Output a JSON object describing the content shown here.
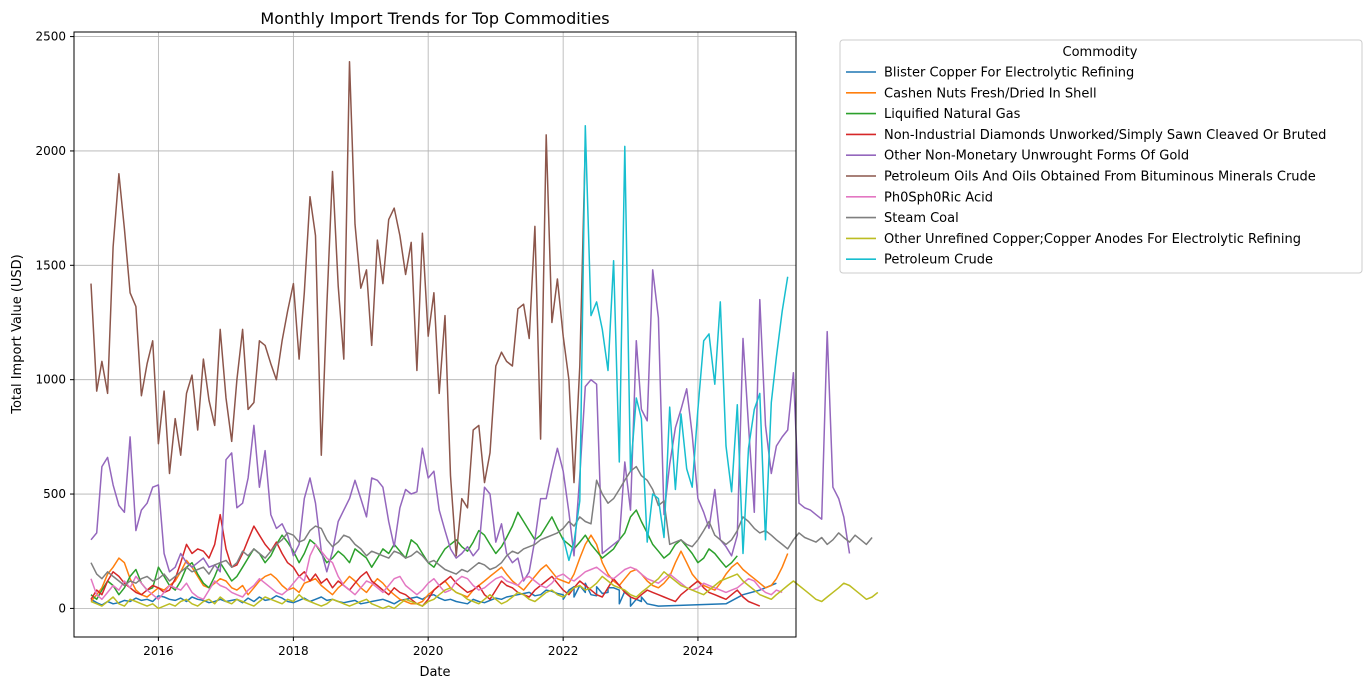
{
  "chart_data": {
    "type": "line",
    "title": "Monthly Import Trends for Top Commodities",
    "xlabel": "Date",
    "ylabel": "Total Import Value (USD)",
    "xlim": [
      "2014-10-01",
      "2025-06-15"
    ],
    "ylim": [
      -125,
      2520
    ],
    "x_ticks": [
      "2016",
      "2018",
      "2020",
      "2022",
      "2024"
    ],
    "x_tick_dates": [
      "2016-01-01",
      "2018-01-01",
      "2020-01-01",
      "2022-01-01",
      "2024-01-01"
    ],
    "y_ticks": [
      0,
      500,
      1000,
      1500,
      2000,
      2500
    ],
    "grid": true,
    "legend": {
      "title": "Commodity",
      "placement": "outside-upper-right"
    },
    "series": [
      {
        "name": "Blister Copper For Electrolytic Refining",
        "color": "#1f77b4",
        "start": "2015-01-01",
        "values": [
          40,
          25,
          15,
          30,
          20,
          25,
          35,
          30,
          45,
          35,
          40,
          30,
          55,
          50,
          40,
          35,
          45,
          30,
          50,
          40,
          35,
          25,
          30,
          40,
          30,
          35,
          40,
          25,
          45,
          30,
          50,
          35,
          40,
          55,
          45,
          30,
          25,
          35,
          45,
          30,
          40,
          50,
          35,
          40,
          30,
          25,
          30,
          35,
          20,
          25,
          30,
          35,
          40,
          30,
          20,
          35,
          40,
          45,
          50,
          40,
          55,
          60,
          45,
          35,
          40,
          30,
          25,
          20,
          40,
          30,
          25,
          35,
          45,
          40,
          50,
          55,
          60,
          65,
          70,
          55,
          60,
          80,
          75,
          65,
          60,
          80,
          95,
          100,
          70,
          60,
          55,
          65,
          70,
          90,
          80,
          75,
          50,
          40,
          30,
          20
        ],
        "extra": [
          [
            "2022-01-01",
            40
          ],
          [
            "2022-03-01",
            50
          ],
          [
            "2022-05-01",
            110
          ],
          [
            "2022-07-01",
            95
          ],
          [
            "2022-09-01",
            90
          ],
          [
            "2022-11-01",
            20
          ],
          [
            "2023-01-01",
            10
          ],
          [
            "2023-03-01",
            50
          ],
          [
            "2023-06-01",
            10
          ],
          [
            "2024-06-01",
            20
          ],
          [
            "2024-09-01",
            60
          ],
          [
            "2024-12-01",
            80
          ],
          [
            "2025-03-01",
            110
          ]
        ]
      },
      {
        "name": "Cashen Nuts Fresh/Dried In Shell",
        "color": "#ff7f0e",
        "start": "2015-01-01",
        "values": [
          30,
          60,
          90,
          150,
          180,
          220,
          200,
          130,
          80,
          60,
          50,
          70,
          90,
          80,
          100,
          120,
          160,
          210,
          180,
          140,
          100,
          90,
          110,
          130,
          120,
          90,
          80,
          100,
          60,
          90,
          120,
          140,
          150,
          130,
          100,
          80,
          90,
          70,
          110,
          120,
          130,
          100,
          80,
          60,
          90,
          110,
          140,
          120,
          90,
          70,
          100,
          130,
          110,
          80,
          60,
          40,
          30,
          20,
          20,
          30,
          60,
          80,
          100,
          120,
          90,
          70,
          60,
          50,
          80,
          100,
          120,
          140,
          160,
          180,
          150,
          120,
          100,
          80,
          110,
          140,
          170,
          190,
          160,
          130,
          120,
          110,
          150,
          220,
          280,
          320,
          280,
          200,
          150,
          120,
          100,
          130,
          160,
          170,
          150,
          120,
          100,
          90,
          110,
          140,
          200,
          250,
          200,
          150,
          120,
          100,
          90,
          80,
          110,
          150,
          180,
          200,
          170,
          150,
          130,
          110,
          90,
          100,
          130,
          180,
          240
        ]
      },
      {
        "name": "Liquified Natural Gas",
        "color": "#2ca02c",
        "start": "2015-01-01",
        "values": [
          60,
          40,
          80,
          120,
          100,
          60,
          90,
          140,
          170,
          110,
          80,
          90,
          180,
          140,
          100,
          80,
          120,
          180,
          200,
          150,
          110,
          90,
          140,
          200,
          160,
          120,
          140,
          180,
          220,
          260,
          240,
          200,
          230,
          280,
          320,
          290,
          250,
          200,
          240,
          300,
          280,
          240,
          200,
          220,
          250,
          230,
          200,
          260,
          240,
          220,
          180,
          220,
          260,
          240,
          280,
          250,
          220,
          300,
          280,
          240,
          200,
          180,
          220,
          260,
          280,
          300,
          270,
          250,
          290,
          340,
          320,
          280,
          240,
          270,
          310,
          360,
          420,
          380,
          340,
          300,
          320,
          360,
          400,
          350,
          300,
          280,
          260,
          290,
          320,
          280,
          250,
          220,
          240,
          260,
          300,
          330,
          400,
          430,
          380,
          330,
          280,
          250,
          220,
          240,
          280,
          300,
          270,
          240,
          200,
          220,
          260,
          240,
          210,
          180,
          200,
          230
        ]
      },
      {
        "name": "Non-Industrial Diamonds Unworked/Simply Sawn Cleaved Or Bruted",
        "color": "#d62728",
        "start": "2015-01-01",
        "values": [
          40,
          80,
          60,
          120,
          160,
          140,
          110,
          90,
          70,
          60,
          80,
          100,
          90,
          70,
          80,
          130,
          200,
          280,
          240,
          260,
          250,
          220,
          280,
          410,
          260,
          180,
          190,
          240,
          300,
          360,
          320,
          280,
          250,
          290,
          240,
          200,
          180,
          140,
          160,
          120,
          150,
          110,
          130,
          90,
          120,
          100,
          80,
          110,
          140,
          160,
          120,
          100,
          80,
          60,
          90,
          70,
          60,
          40,
          20,
          10,
          40,
          80,
          100,
          120,
          140,
          110,
          90,
          70,
          80,
          100,
          60,
          40,
          80,
          120,
          100,
          90,
          70,
          60,
          50,
          80,
          100,
          120,
          140,
          110,
          80,
          60,
          90,
          120,
          100,
          80,
          60,
          50,
          90,
          130,
          100,
          70,
          50,
          40,
          60,
          80,
          70,
          60,
          50,
          40,
          30,
          60,
          80,
          100,
          120,
          90,
          70,
          60,
          50,
          40,
          60,
          80,
          50,
          30,
          20,
          10
        ]
      },
      {
        "name": "Other Non-Monetary Unwrought Forms Of Gold",
        "color": "#9467bd",
        "start": "2015-01-01",
        "values": [
          300,
          330,
          620,
          660,
          540,
          450,
          420,
          750,
          340,
          430,
          460,
          530,
          540,
          240,
          160,
          180,
          240,
          200,
          180,
          200,
          220,
          180,
          190,
          160,
          650,
          680,
          440,
          460,
          570,
          800,
          530,
          690,
          410,
          350,
          370,
          320,
          230,
          280,
          480,
          570,
          460,
          250,
          160,
          250,
          380,
          430,
          480,
          560,
          480,
          400,
          570,
          560,
          530,
          380,
          270,
          440,
          520,
          500,
          510,
          700,
          570,
          600,
          430,
          340,
          260,
          220,
          240,
          270,
          230,
          260,
          530,
          500,
          290,
          370,
          240,
          200,
          220,
          120,
          160,
          300,
          480,
          480,
          600,
          700,
          600,
          420,
          230,
          580,
          970,
          1000,
          980,
          240,
          260,
          280,
          300,
          640,
          430,
          1170,
          870,
          820,
          1480,
          1270,
          410,
          630,
          790,
          870,
          960,
          760,
          480,
          420,
          350,
          520,
          300,
          270,
          230,
          320,
          1180,
          800,
          420,
          1350,
          800,
          590,
          710,
          750,
          780,
          1030,
          460,
          440,
          430,
          410,
          390,
          1210,
          530,
          480,
          400,
          240
        ]
      },
      {
        "name": "Petroleum Oils And Oils Obtained From Bituminous Minerals Crude",
        "color": "#8c564b",
        "start": "2015-01-01",
        "values": [
          1420,
          950,
          1080,
          940,
          1580,
          1900,
          1660,
          1380,
          1320,
          930,
          1070,
          1170,
          720,
          950,
          590,
          830,
          670,
          940,
          1020,
          780,
          1090,
          910,
          800,
          1220,
          920,
          730,
          1000,
          1220,
          870,
          900,
          1170,
          1150,
          1070,
          1000,
          1170,
          1300,
          1420,
          1090,
          1380,
          1800,
          1630,
          670,
          1320,
          1910,
          1410,
          1090,
          2390,
          1680,
          1400,
          1480,
          1150,
          1610,
          1420,
          1700,
          1750,
          1630,
          1460,
          1600,
          1040,
          1640,
          1190,
          1380,
          940,
          1280,
          580,
          230,
          480,
          440,
          780,
          800,
          550,
          680,
          1060,
          1120,
          1080,
          1060,
          1310,
          1330,
          1180,
          1670,
          740,
          2070,
          1250,
          1440,
          1190,
          1000,
          550,
          1060,
          2030
        ]
      },
      {
        "name": "Ph0Sph0Ric Acid",
        "color": "#e377c2",
        "start": "2015-01-01",
        "values": [
          130,
          60,
          40,
          70,
          100,
          80,
          120,
          90,
          140,
          110,
          80,
          60,
          40,
          70,
          100,
          90,
          80,
          110,
          70,
          50,
          40,
          80,
          120,
          100,
          90,
          70,
          60,
          50,
          80,
          100,
          130,
          110,
          90,
          70,
          60,
          80,
          110,
          140,
          120,
          230,
          280,
          250,
          220,
          200,
          140,
          100,
          80,
          60,
          90,
          120,
          110,
          90,
          70,
          100,
          130,
          140,
          100,
          80,
          60,
          80,
          110,
          130,
          100,
          70,
          80,
          120,
          140,
          130,
          100,
          80,
          90,
          110,
          130,
          140,
          120,
          110,
          100,
          130,
          140,
          120,
          100,
          90,
          110,
          140,
          150,
          130,
          120,
          140,
          160,
          170,
          180,
          160,
          140,
          130,
          150,
          170,
          180,
          170,
          150,
          130,
          120,
          110,
          130,
          150,
          130,
          110,
          90,
          80,
          90,
          110,
          100,
          90,
          80,
          70,
          80,
          90,
          110,
          130,
          120,
          90,
          70,
          60,
          80,
          70
        ]
      },
      {
        "name": "Steam Coal",
        "color": "#7f7f7f",
        "start": "2015-01-01",
        "values": [
          200,
          150,
          130,
          160,
          140,
          120,
          100,
          120,
          110,
          130,
          140,
          120,
          130,
          150,
          120,
          140,
          160,
          180,
          160,
          170,
          180,
          150,
          190,
          200,
          210,
          180,
          200,
          250,
          230,
          260,
          240,
          220,
          250,
          280,
          300,
          330,
          320,
          290,
          300,
          340,
          360,
          350,
          300,
          270,
          290,
          320,
          310,
          280,
          260,
          230,
          250,
          240,
          230,
          220,
          250,
          240,
          220,
          230,
          250,
          230,
          200,
          210,
          190,
          170,
          160,
          150,
          170,
          160,
          180,
          200,
          190,
          170,
          180,
          200,
          230,
          250,
          240,
          260,
          270,
          280,
          300,
          310,
          320,
          330,
          350,
          380,
          360,
          400,
          380,
          370,
          560,
          500,
          460,
          480,
          520,
          560,
          600,
          620,
          580,
          560,
          520,
          450,
          470,
          280,
          290,
          300,
          280,
          270,
          300,
          340,
          380,
          320,
          300,
          280,
          300,
          340,
          400,
          380,
          350,
          330,
          340,
          320,
          300,
          280,
          260,
          300,
          330,
          310,
          300,
          290,
          310,
          280,
          300,
          330,
          310,
          290,
          320,
          300,
          280,
          310
        ]
      },
      {
        "name": "Other Unrefined Copper;Copper Anodes For Electrolytic Refining",
        "color": "#bcbd22",
        "start": "2015-01-01",
        "values": [
          30,
          20,
          10,
          30,
          50,
          20,
          10,
          40,
          30,
          20,
          10,
          20,
          0,
          10,
          20,
          10,
          30,
          40,
          20,
          10,
          30,
          40,
          20,
          50,
          30,
          20,
          40,
          30,
          20,
          10,
          30,
          50,
          40,
          30,
          20,
          40,
          30,
          60,
          40,
          30,
          20,
          10,
          20,
          40,
          30,
          20,
          10,
          20,
          30,
          40,
          20,
          10,
          0,
          10,
          0,
          20,
          40,
          30,
          20,
          10,
          30,
          40,
          60,
          80,
          90,
          70,
          60,
          40,
          30,
          20,
          40,
          60,
          40,
          20,
          30,
          50,
          70,
          60,
          40,
          30,
          50,
          70,
          80,
          60,
          50,
          70,
          90,
          100,
          80,
          90,
          110,
          140,
          120,
          100,
          90,
          80,
          60,
          50,
          70,
          90,
          110,
          130,
          160,
          140,
          120,
          100,
          90,
          80,
          70,
          60,
          80,
          100,
          120,
          130,
          140,
          150,
          120,
          100,
          80,
          60,
          50,
          40,
          60,
          80,
          100,
          120,
          100,
          80,
          60,
          40,
          30,
          50,
          70,
          90,
          110,
          100,
          80,
          60,
          40,
          50,
          70
        ]
      },
      {
        "name": "Petroleum Crude",
        "color": "#17becf",
        "start": "2022-01-01",
        "values": [
          310,
          210,
          290,
          470,
          2110,
          1280,
          1340,
          1220,
          1040,
          1520,
          640,
          2020,
          600,
          920,
          830,
          290,
          500,
          480,
          310,
          880,
          520,
          850,
          610,
          530,
          870,
          1170,
          1200,
          980,
          1340,
          710,
          510,
          890,
          240,
          700,
          870,
          940,
          300,
          900,
          1100,
          1300,
          1450
        ]
      }
    ]
  }
}
